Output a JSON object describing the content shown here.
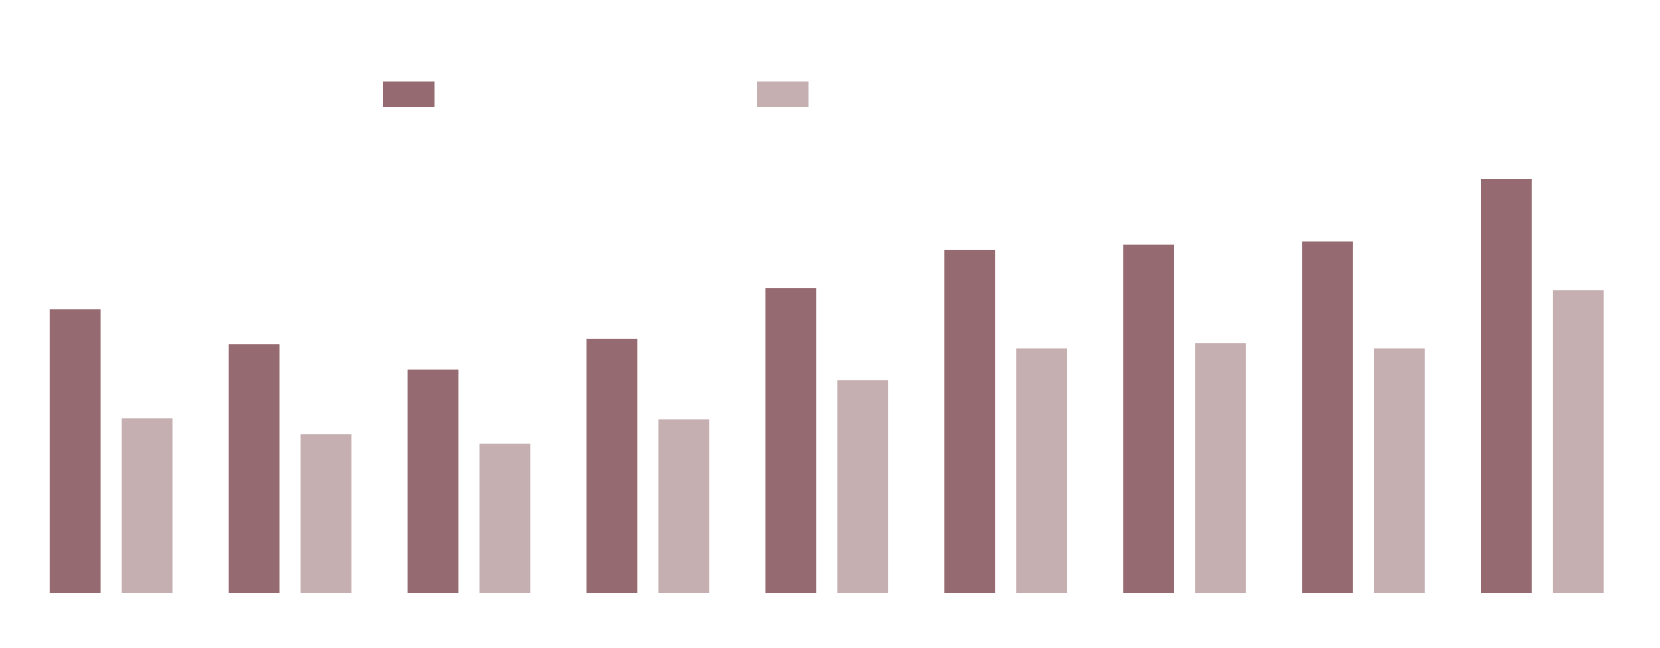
{
  "chart_data": {
    "type": "bar",
    "categories": [
      null,
      null,
      null,
      null,
      null,
      null,
      null,
      null,
      null
    ],
    "series": [
      {
        "color": "#956a70",
        "values": [
          268,
          235,
          211,
          240,
          288,
          324,
          329,
          332,
          391
        ]
      },
      {
        "color": "#c6afb1",
        "values": [
          165,
          150,
          141,
          164,
          201,
          231,
          236,
          231,
          286
        ]
      }
    ],
    "legend": "top-left"
  }
}
